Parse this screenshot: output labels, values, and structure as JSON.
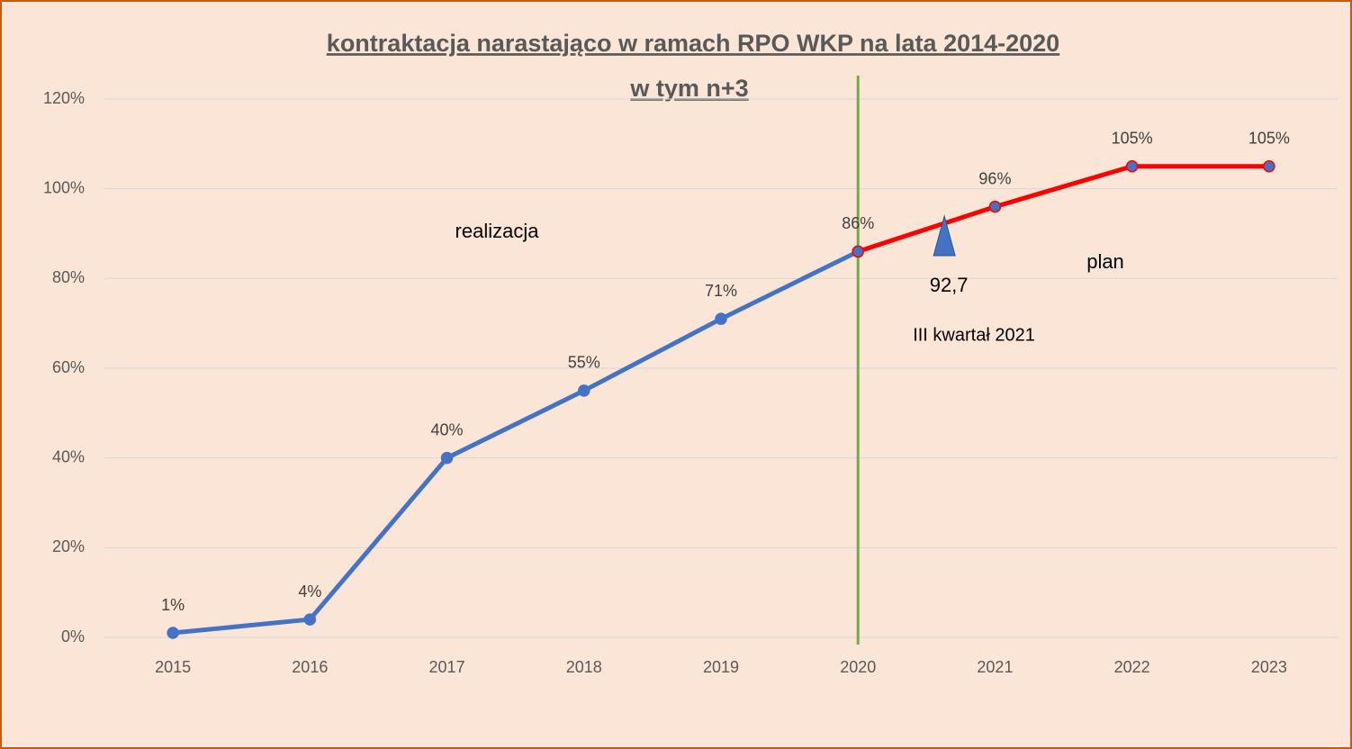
{
  "chart_data": {
    "type": "line",
    "title": "kontraktacja narastająco w ramach RPO WKP na lata 2014-2020",
    "subtitle": "w tym n+3",
    "categories": [
      "2015",
      "2016",
      "2017",
      "2018",
      "2019",
      "2020",
      "2021",
      "2022",
      "2023"
    ],
    "series": [
      {
        "name": "realizacja",
        "color": "#4472c4",
        "marker_color": "#4472c4",
        "values": [
          1,
          4,
          40,
          55,
          71,
          86,
          null,
          null,
          null
        ],
        "value_labels": [
          "1%",
          "4%",
          "40%",
          "55%",
          "71%",
          "86%",
          null,
          null,
          null
        ]
      },
      {
        "name": "plan",
        "color": "#ff0000",
        "marker_color": "#4472c4",
        "values": [
          null,
          null,
          null,
          null,
          null,
          86,
          96,
          105,
          105
        ],
        "value_labels": [
          null,
          null,
          null,
          null,
          null,
          null,
          "96%",
          "105%",
          "105%"
        ]
      }
    ],
    "ylim": [
      0,
      120
    ],
    "yticks": [
      {
        "value": 0,
        "label": "0%"
      },
      {
        "value": 20,
        "label": "20%"
      },
      {
        "value": 40,
        "label": "40%"
      },
      {
        "value": 60,
        "label": "60%"
      },
      {
        "value": 80,
        "label": "80%"
      },
      {
        "value": 100,
        "label": "100%"
      },
      {
        "value": 120,
        "label": "120%"
      }
    ],
    "grid": true,
    "annotations": [
      {
        "type": "vline",
        "category": "2020",
        "color": "#70ad47"
      },
      {
        "type": "marker",
        "text": "92,7",
        "value": 92.7,
        "color": "#4472c4"
      },
      {
        "type": "text",
        "text": "III kwartał 2021"
      }
    ]
  }
}
